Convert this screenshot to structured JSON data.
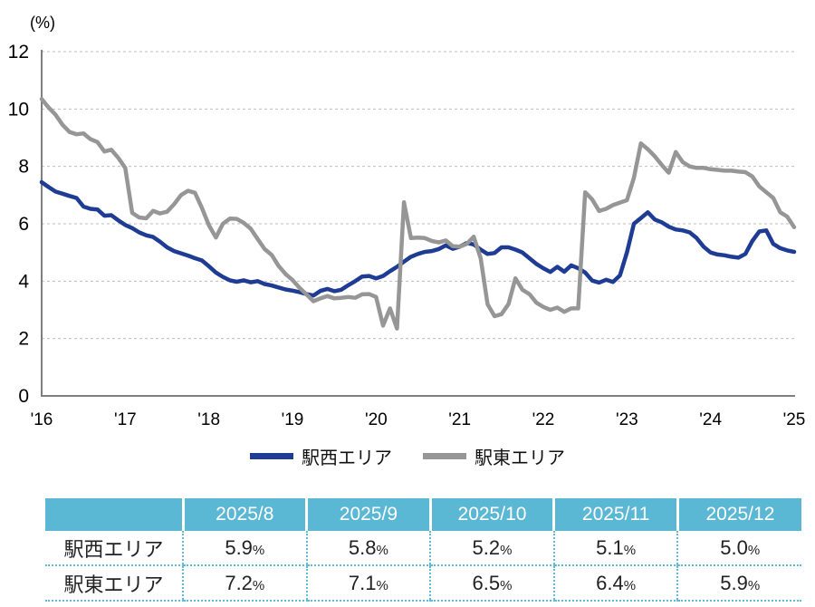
{
  "chart": {
    "y_axis_unit_label": "(%)",
    "y_ticks": [
      0,
      2,
      4,
      6,
      8,
      10,
      12
    ],
    "x_ticks": [
      "'16",
      "'17",
      "'18",
      "'19",
      "'20",
      "'21",
      "'22",
      "'23",
      "'24",
      "'25"
    ]
  },
  "legend": {
    "items": [
      {
        "label": "駅西エリア",
        "color": "#1F3C94"
      },
      {
        "label": "駅東エリア",
        "color": "#969696"
      }
    ]
  },
  "chart_data": {
    "type": "line",
    "title": "",
    "ylabel": "(%)",
    "ylim": [
      0,
      12
    ],
    "grid": "horizontal-dashed",
    "legend_position": "bottom",
    "x_unit": "month",
    "x_range": [
      "2016-01",
      "2025-01"
    ],
    "x_tick_labels": [
      "'16",
      "'17",
      "'18",
      "'19",
      "'20",
      "'21",
      "'22",
      "'23",
      "'24",
      "'25"
    ],
    "series": [
      {
        "name": "駅西エリア",
        "color": "#1F3C94",
        "values": [
          7.45,
          7.28,
          7.12,
          7.05,
          6.97,
          6.9,
          6.6,
          6.52,
          6.5,
          6.28,
          6.3,
          6.12,
          5.96,
          5.85,
          5.7,
          5.6,
          5.54,
          5.37,
          5.18,
          5.05,
          4.97,
          4.89,
          4.8,
          4.72,
          4.52,
          4.3,
          4.15,
          4.03,
          3.98,
          4.03,
          3.96,
          4.0,
          3.9,
          3.85,
          3.78,
          3.71,
          3.67,
          3.62,
          3.55,
          3.5,
          3.66,
          3.73,
          3.65,
          3.7,
          3.86,
          4.0,
          4.16,
          4.18,
          4.1,
          4.18,
          4.35,
          4.5,
          4.68,
          4.85,
          4.95,
          5.02,
          5.05,
          5.12,
          5.25,
          5.13,
          5.2,
          5.33,
          5.28,
          5.1,
          4.95,
          4.98,
          5.18,
          5.18,
          5.1,
          5.0,
          4.8,
          4.6,
          4.45,
          4.32,
          4.5,
          4.33,
          4.55,
          4.45,
          4.3,
          4.02,
          3.95,
          4.05,
          3.97,
          4.2,
          5.0,
          6.0,
          6.2,
          6.4,
          6.15,
          6.05,
          5.9,
          5.8,
          5.77,
          5.7,
          5.5,
          5.2,
          5.0,
          4.93,
          4.9,
          4.85,
          4.82,
          4.95,
          5.4,
          5.73,
          5.77,
          5.3,
          5.15,
          5.07,
          5.02
        ]
      },
      {
        "name": "駅東エリア",
        "color": "#969696",
        "values": [
          10.35,
          10.05,
          9.8,
          9.45,
          9.2,
          9.12,
          9.15,
          8.95,
          8.85,
          8.52,
          8.58,
          8.3,
          7.95,
          6.38,
          6.22,
          6.19,
          6.45,
          6.36,
          6.42,
          6.68,
          7.0,
          7.15,
          7.08,
          6.55,
          5.95,
          5.52,
          6.0,
          6.18,
          6.17,
          6.03,
          5.83,
          5.47,
          5.12,
          4.92,
          4.53,
          4.25,
          4.04,
          3.77,
          3.54,
          3.3,
          3.4,
          3.48,
          3.4,
          3.42,
          3.45,
          3.42,
          3.54,
          3.55,
          3.45,
          2.45,
          3.05,
          2.35,
          6.75,
          5.5,
          5.52,
          5.5,
          5.4,
          5.35,
          5.42,
          5.22,
          5.2,
          5.3,
          5.55,
          4.8,
          3.2,
          2.78,
          2.85,
          3.2,
          4.1,
          3.7,
          3.55,
          3.25,
          3.1,
          3.0,
          3.08,
          2.93,
          3.05,
          3.05,
          7.1,
          6.85,
          6.45,
          6.52,
          6.65,
          6.74,
          6.82,
          7.6,
          8.8,
          8.6,
          8.35,
          8.05,
          7.78,
          8.5,
          8.15,
          8.0,
          7.95,
          7.95,
          7.9,
          7.88,
          7.85,
          7.85,
          7.82,
          7.8,
          7.65,
          7.3,
          7.1,
          6.9,
          6.4,
          6.25,
          5.88
        ]
      }
    ]
  },
  "table": {
    "unit": "%",
    "header_bg": "#5BB8D4",
    "columns": [
      "2025/8",
      "2025/9",
      "2025/10",
      "2025/11",
      "2025/12"
    ],
    "rows": [
      {
        "label": "駅西エリア",
        "values": [
          "5.9",
          "5.8",
          "5.2",
          "5.1",
          "5.0"
        ]
      },
      {
        "label": "駅東エリア",
        "values": [
          "7.2",
          "7.1",
          "6.5",
          "6.4",
          "5.9"
        ]
      }
    ]
  }
}
